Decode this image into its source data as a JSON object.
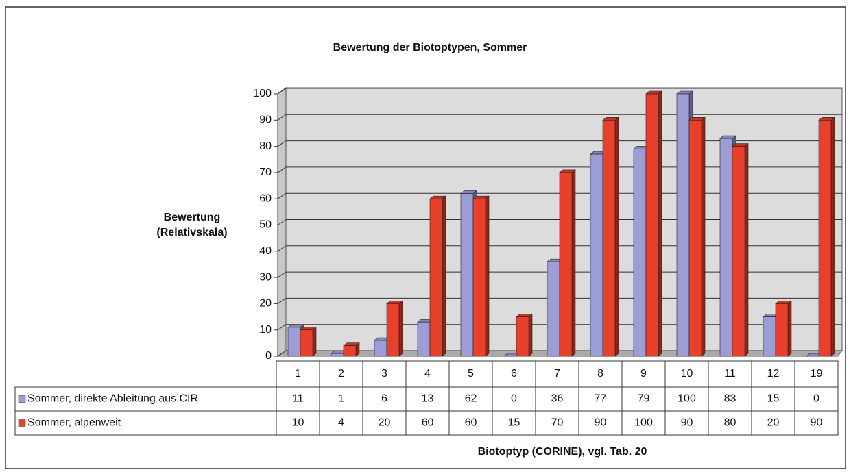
{
  "chart_data": {
    "type": "bar3d",
    "title": "Bewertung der Biotoptypen, Sommer",
    "y_label": [
      "Bewertung",
      "(Relativskala)"
    ],
    "x_label": "Biotoptyp (CORINE), vgl. Tab. 20",
    "categories": [
      "1",
      "2",
      "3",
      "4",
      "5",
      "6",
      "7",
      "8",
      "9",
      "10",
      "11",
      "12",
      "19"
    ],
    "series": [
      {
        "name": "Sommer, direkte Ableitung aus CIR",
        "color": "#9c9cd6",
        "values": [
          11,
          1,
          6,
          13,
          62,
          0,
          36,
          77,
          79,
          100,
          83,
          15,
          0
        ]
      },
      {
        "name": "Sommer, alpenweit",
        "color": "#e8402a",
        "values": [
          10,
          4,
          20,
          60,
          60,
          15,
          70,
          90,
          100,
          90,
          80,
          20,
          90
        ]
      }
    ],
    "ylim": [
      0,
      100
    ],
    "yticks": [
      0,
      10,
      20,
      30,
      40,
      50,
      60,
      70,
      80,
      90,
      100
    ],
    "grid": true,
    "data_table": true
  }
}
